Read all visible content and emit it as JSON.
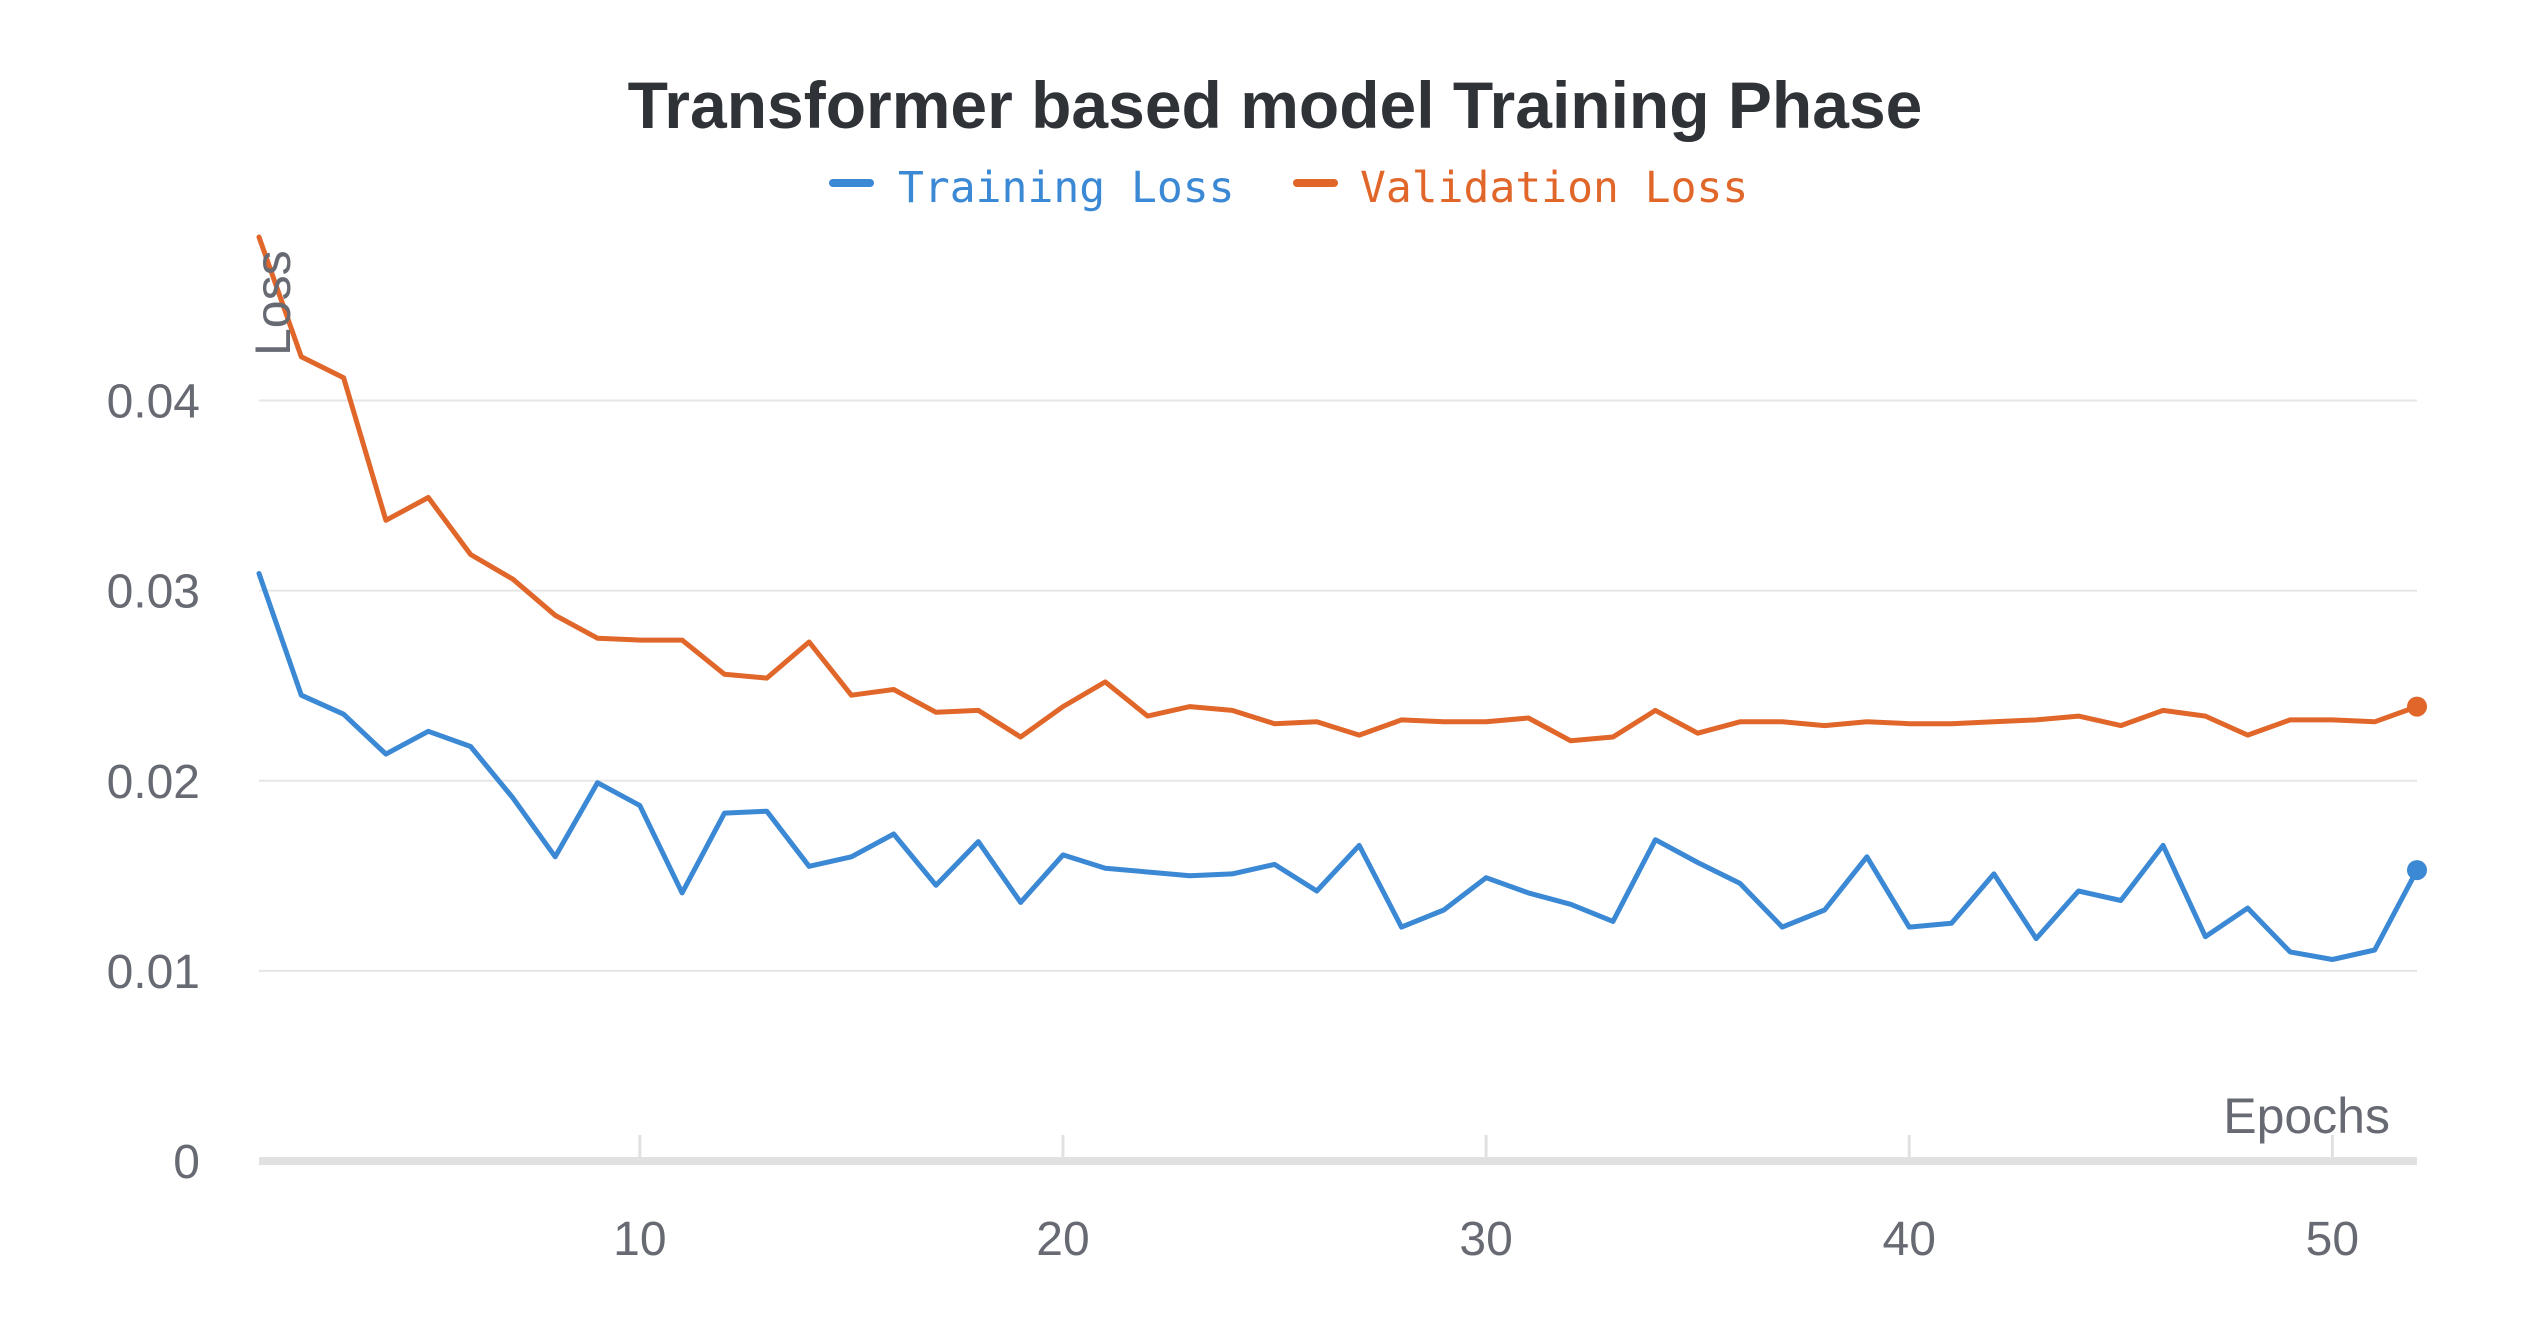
{
  "chart_data": {
    "type": "line",
    "title": "Transformer based model Training Phase",
    "xlabel": "Epochs",
    "ylabel": "Loss",
    "x_ticks": [
      "10",
      "20",
      "30",
      "40",
      "50"
    ],
    "x_tick_values": [
      10,
      20,
      30,
      40,
      50
    ],
    "y_ticks": [
      "0",
      "0.01",
      "0.02",
      "0.03",
      "0.04"
    ],
    "y_tick_values": [
      0,
      0.01,
      0.02,
      0.03,
      0.04
    ],
    "xlim": [
      1,
      52
    ],
    "ylim": [
      0,
      0.0486
    ],
    "grid": "horizontal",
    "legend_position": "top-center",
    "x": [
      1,
      2,
      3,
      4,
      5,
      6,
      7,
      8,
      9,
      10,
      11,
      12,
      13,
      14,
      15,
      16,
      17,
      18,
      19,
      20,
      21,
      22,
      23,
      24,
      25,
      26,
      27,
      28,
      29,
      30,
      31,
      32,
      33,
      34,
      35,
      36,
      37,
      38,
      39,
      40,
      41,
      42,
      43,
      44,
      45,
      46,
      47,
      48,
      49,
      50,
      51,
      52
    ],
    "series": [
      {
        "name": "Training Loss",
        "color": "#3b88d4",
        "values": [
          0.0309,
          0.0245,
          0.0235,
          0.0214,
          0.0226,
          0.0218,
          0.0191,
          0.016,
          0.0199,
          0.0187,
          0.0141,
          0.0183,
          0.0184,
          0.0155,
          0.016,
          0.0172,
          0.0145,
          0.0168,
          0.0136,
          0.0161,
          0.0154,
          0.0152,
          0.015,
          0.0151,
          0.0156,
          0.0142,
          0.0166,
          0.0123,
          0.0132,
          0.0149,
          0.0141,
          0.0135,
          0.0126,
          0.0169,
          0.0157,
          0.0146,
          0.0123,
          0.0132,
          0.016,
          0.0123,
          0.0125,
          0.0151,
          0.0117,
          0.0142,
          0.0137,
          0.0166,
          0.0118,
          0.0133,
          0.011,
          0.0106,
          0.0111,
          0.0153
        ]
      },
      {
        "name": "Validation Loss",
        "color": "#e0662a",
        "values": [
          0.0486,
          0.0423,
          0.0412,
          0.0337,
          0.0349,
          0.0319,
          0.0306,
          0.0287,
          0.0275,
          0.0274,
          0.0274,
          0.0256,
          0.0254,
          0.0273,
          0.0245,
          0.0248,
          0.0236,
          0.0237,
          0.0223,
          0.0239,
          0.0252,
          0.0234,
          0.0239,
          0.0237,
          0.023,
          0.0231,
          0.0224,
          0.0232,
          0.0231,
          0.0231,
          0.0233,
          0.0221,
          0.0223,
          0.0237,
          0.0225,
          0.0231,
          0.0231,
          0.0229,
          0.0231,
          0.023,
          0.023,
          0.0231,
          0.0232,
          0.0234,
          0.0229,
          0.0237,
          0.0234,
          0.0224,
          0.0232,
          0.0232,
          0.0231,
          0.0239
        ]
      }
    ]
  }
}
